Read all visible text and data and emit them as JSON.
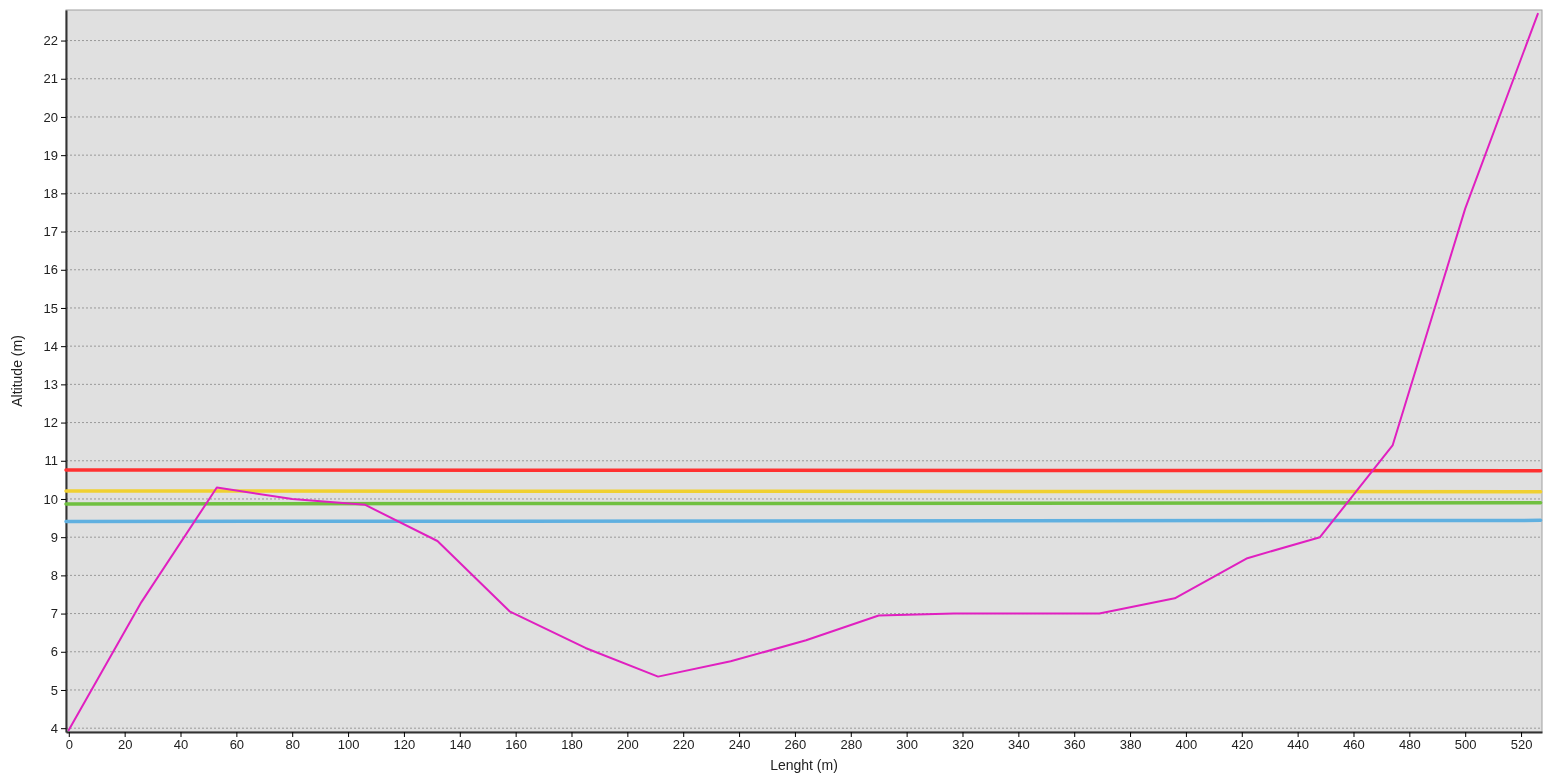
{
  "chart_data": {
    "type": "line",
    "xlabel": "Lenght (m)",
    "ylabel": "Altitude (m)",
    "xlim": [
      -1,
      527.5
    ],
    "ylim": [
      3.9,
      22.8
    ],
    "xticks": [
      0,
      20,
      40,
      60,
      80,
      100,
      120,
      140,
      160,
      180,
      200,
      220,
      240,
      260,
      280,
      300,
      320,
      340,
      360,
      380,
      400,
      420,
      440,
      460,
      480,
      500,
      520
    ],
    "yticks": [
      4,
      5,
      6,
      7,
      8,
      9,
      10,
      11,
      12,
      13,
      14,
      15,
      16,
      17,
      18,
      19,
      20,
      21,
      22
    ],
    "grid": "y",
    "line_style": "solid",
    "marker": "none",
    "series": [
      {
        "color": "#ff3030",
        "x": [
          -1,
          527
        ],
        "values": [
          10.76,
          10.74
        ]
      },
      {
        "color": "#f0d030",
        "x": [
          -1,
          527
        ],
        "values": [
          10.21,
          10.19
        ]
      },
      {
        "color": "#70c040",
        "x": [
          -1,
          527
        ],
        "values": [
          9.87,
          9.9
        ]
      },
      {
        "color": "#60b0e0",
        "x": [
          -1,
          527
        ],
        "values": [
          9.41,
          9.44
        ]
      },
      {
        "color": "#e020c0",
        "x": [
          0,
          26,
          53,
          80,
          106,
          132,
          158,
          185,
          211,
          237,
          264,
          290,
          317,
          343,
          369,
          396,
          422,
          448,
          474,
          500,
          526
        ],
        "values": [
          3.95,
          7.3,
          10.3,
          10.0,
          9.85,
          8.9,
          7.05,
          6.1,
          5.35,
          5.75,
          6.3,
          6.95,
          7.0,
          7.0,
          7.0,
          7.4,
          8.45,
          9.0,
          11.4,
          17.6,
          22.7
        ]
      }
    ]
  }
}
